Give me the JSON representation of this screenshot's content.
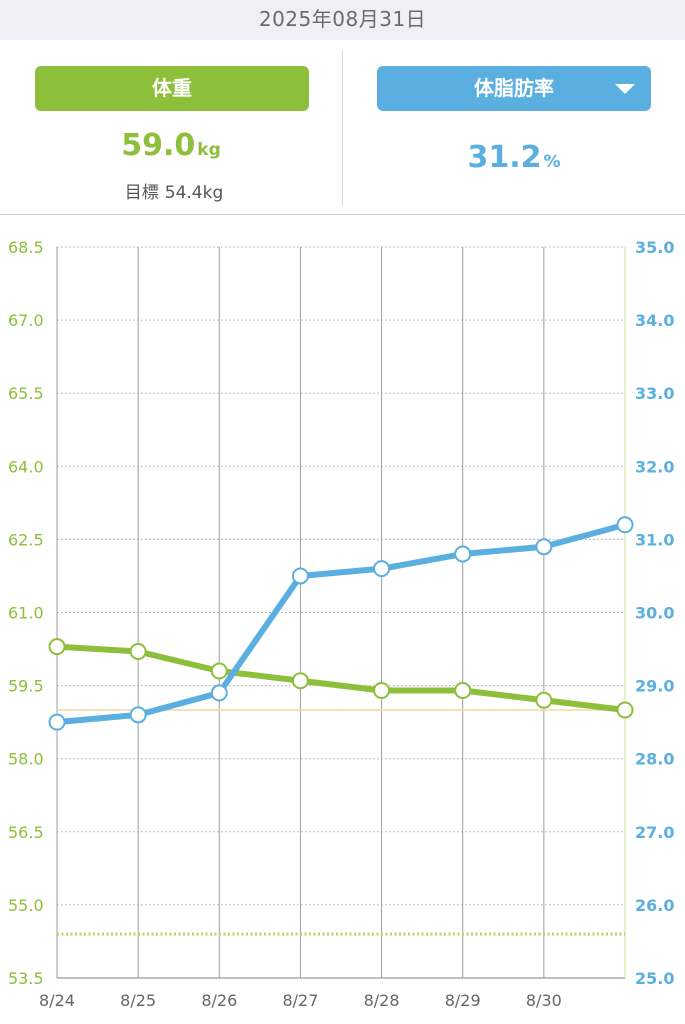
{
  "header": {
    "date": "2025年08月31日"
  },
  "weight_panel": {
    "button_label": "体重",
    "value": "59.0",
    "unit": "kg",
    "goal_label": "目標",
    "goal_value": "54.4kg"
  },
  "fat_panel": {
    "button_label": "体脂肪率",
    "value": "31.2",
    "unit": "%"
  },
  "colors": {
    "weight": "#8dbf3a",
    "body_fat": "#5aafe0",
    "goal_line": "#b5d66a",
    "marker_fill": "#ffffff"
  },
  "chart_data": {
    "type": "line",
    "x": [
      "8/24",
      "8/25",
      "8/26",
      "8/27",
      "8/28",
      "8/29",
      "8/30",
      ""
    ],
    "x_tick_labels": [
      "8/24",
      "8/25",
      "8/26",
      "8/27",
      "8/28",
      "8/29",
      "8/30"
    ],
    "left_axis": {
      "ylim": [
        53.5,
        68.5
      ],
      "ticks": [
        53.5,
        55.0,
        56.5,
        58.0,
        59.5,
        61.0,
        62.5,
        64.0,
        65.5,
        67.0,
        68.5
      ]
    },
    "right_axis": {
      "ylim": [
        25.0,
        35.0
      ],
      "ticks": [
        25.0,
        26.0,
        27.0,
        28.0,
        29.0,
        30.0,
        31.0,
        32.0,
        33.0,
        34.0,
        35.0
      ]
    },
    "series": [
      {
        "axis": "left",
        "values": [
          60.3,
          60.2,
          59.8,
          59.6,
          59.4,
          59.4,
          59.2,
          59.0
        ]
      },
      {
        "axis": "right",
        "values": [
          28.5,
          28.6,
          28.9,
          30.5,
          30.6,
          30.8,
          30.9,
          31.2
        ]
      }
    ],
    "goal_value": 54.4,
    "grid": true
  }
}
